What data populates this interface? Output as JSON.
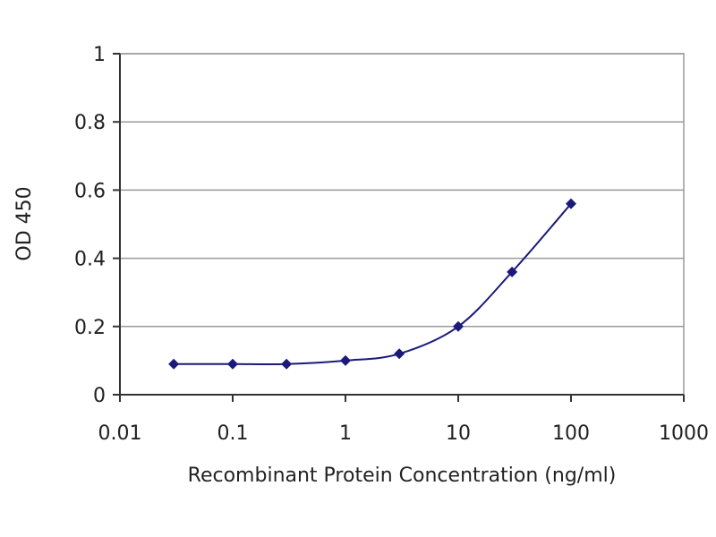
{
  "chart_data": {
    "type": "line",
    "title": "",
    "xlabel": "Recombinant Protein Concentration (ng/ml)",
    "ylabel": "OD 450",
    "x_scale": "log",
    "xlim": [
      0.01,
      1000
    ],
    "ylim": [
      0,
      1
    ],
    "x_ticks": [
      0.01,
      0.1,
      1,
      10,
      100,
      1000
    ],
    "x_tick_labels": [
      "0.01",
      "0.1",
      "1",
      "10",
      "100",
      "1000"
    ],
    "y_ticks": [
      0,
      0.2,
      0.4,
      0.6,
      0.8,
      1
    ],
    "y_tick_labels": [
      "0",
      "0.2",
      "0.4",
      "0.6",
      "0.8",
      "1"
    ],
    "grid": "horizontal",
    "legend": "none",
    "series": [
      {
        "x": [
          0.03,
          0.1,
          0.3,
          1,
          3,
          10,
          30,
          100
        ],
        "y": [
          0.09,
          0.09,
          0.09,
          0.1,
          0.12,
          0.2,
          0.36,
          0.56
        ],
        "color": "#1a1a7a"
      }
    ],
    "colors": {
      "grid": "#9a9a9a",
      "frame": "#9a9a9a",
      "axis": "#333333"
    }
  }
}
